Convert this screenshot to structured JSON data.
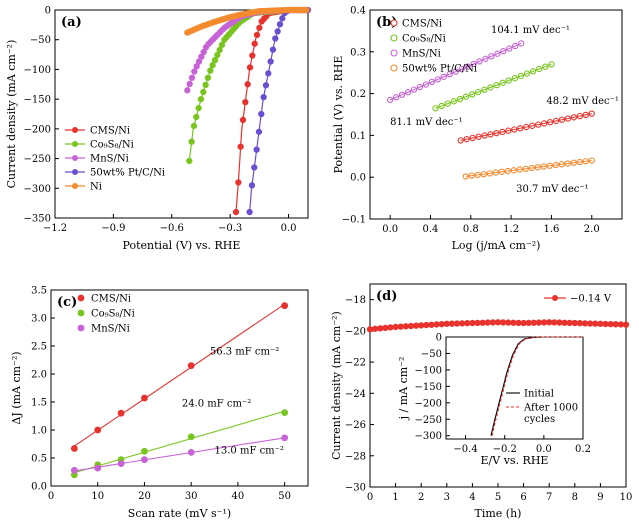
{
  "colors": {
    "red": "#e8322d",
    "green": "#79c51f",
    "purple": "#c763d6",
    "blue": "#6a4fd0",
    "orange": "#f48a2e",
    "black": "#000000",
    "dashred": "#e8322d"
  },
  "chart_data": [
    {
      "panel": "(a)",
      "type": "line",
      "xlabel": "Potential (V) vs. RHE",
      "ylabel": "Current density (mA cm⁻²)",
      "xlim": [
        -1.2,
        0.1
      ],
      "ylim": [
        -350,
        0
      ],
      "xticks": [
        -1.2,
        -0.9,
        -0.6,
        -0.3,
        0.0
      ],
      "xtick_labels": [
        "−1.2",
        "−0.9",
        "−0.6",
        "−0.3",
        "0.0"
      ],
      "yticks": [
        0,
        -50,
        -100,
        -150,
        -200,
        -250,
        -300,
        -350
      ],
      "ytick_labels": [
        "0",
        "−50",
        "−100",
        "−150",
        "−200",
        "−250",
        "−300",
        "−350"
      ],
      "legend": [
        "CMS/Ni",
        "Co₉S₈/Ni",
        "MnS/Ni",
        "50wt% Pt/C/Ni",
        "Ni"
      ],
      "series": [
        {
          "name": "CMS/Ni",
          "color": "red",
          "points": [
            [
              -0.27,
              -340
            ],
            [
              -0.26,
              -300
            ],
            [
              -0.25,
              -250
            ],
            [
              -0.24,
              -200
            ],
            [
              -0.22,
              -150
            ],
            [
              -0.2,
              -100
            ],
            [
              -0.17,
              -50
            ],
            [
              -0.14,
              -20
            ],
            [
              -0.1,
              -5
            ],
            [
              0.0,
              0
            ],
            [
              0.1,
              0
            ]
          ]
        },
        {
          "name": "Co₉S₈/Ni",
          "color": "green",
          "points": [
            [
              -0.51,
              -254
            ],
            [
              -0.49,
              -200
            ],
            [
              -0.45,
              -150
            ],
            [
              -0.4,
              -100
            ],
            [
              -0.33,
              -50
            ],
            [
              -0.25,
              -20
            ],
            [
              -0.18,
              -5
            ],
            [
              0.0,
              0
            ],
            [
              0.1,
              0
            ]
          ]
        },
        {
          "name": "MnS/Ni",
          "color": "purple",
          "points": [
            [
              -0.52,
              -135
            ],
            [
              -0.48,
              -100
            ],
            [
              -0.42,
              -60
            ],
            [
              -0.33,
              -30
            ],
            [
              -0.24,
              -10
            ],
            [
              -0.15,
              -3
            ],
            [
              0.0,
              0
            ],
            [
              0.1,
              0
            ]
          ]
        },
        {
          "name": "50wt% Pt/C/Ni",
          "color": "blue",
          "points": [
            [
              -0.2,
              -340
            ],
            [
              -0.19,
              -300
            ],
            [
              -0.17,
              -250
            ],
            [
              -0.15,
              -200
            ],
            [
              -0.13,
              -150
            ],
            [
              -0.1,
              -100
            ],
            [
              -0.07,
              -50
            ],
            [
              -0.04,
              -20
            ],
            [
              -0.02,
              -5
            ],
            [
              0.0,
              0
            ],
            [
              0.1,
              0
            ]
          ]
        },
        {
          "name": "Ni",
          "color": "orange",
          "points": [
            [
              -0.52,
              -38
            ],
            [
              -0.45,
              -28
            ],
            [
              -0.38,
              -20
            ],
            [
              -0.3,
              -12
            ],
            [
              -0.22,
              -6
            ],
            [
              -0.15,
              -2
            ],
            [
              0.0,
              0
            ],
            [
              0.1,
              0
            ]
          ]
        }
      ]
    },
    {
      "panel": "(b)",
      "type": "scatter",
      "xlabel": "Log (j/mA cm⁻²)",
      "ylabel": "Potential (V) vs. RHE",
      "xlim": [
        -0.2,
        2.3
      ],
      "ylim": [
        -0.1,
        0.4
      ],
      "xticks": [
        0.0,
        0.4,
        0.8,
        1.2,
        1.6,
        2.0
      ],
      "xtick_labels": [
        "0.0",
        "0.4",
        "0.8",
        "1.2",
        "1.6",
        "2.0"
      ],
      "yticks": [
        -0.1,
        0.0,
        0.1,
        0.2,
        0.3,
        0.4
      ],
      "ytick_labels": [
        "−0.1",
        "0.0",
        "0.1",
        "0.2",
        "0.3",
        "0.4"
      ],
      "legend": [
        "CMS/Ni",
        "Co₉S₈/Ni",
        "MnS/Ni",
        "50wt% Pt/C/Ni"
      ],
      "annotations": [
        "104.1 mV dec⁻¹",
        "48.2 mV dec⁻¹",
        "81.1 mV dec⁻¹",
        "30.7 mV dec⁻¹"
      ],
      "series": [
        {
          "name": "CMS/Ni",
          "color": "red",
          "x0": 0.7,
          "x1": 2.0,
          "y0": 0.088,
          "y1": 0.152
        },
        {
          "name": "Co₉S₈/Ni",
          "color": "green",
          "x0": 0.45,
          "x1": 1.6,
          "y0": 0.165,
          "y1": 0.27
        },
        {
          "name": "MnS/Ni",
          "color": "purple",
          "x0": 0.0,
          "x1": 1.3,
          "y0": 0.185,
          "y1": 0.32
        },
        {
          "name": "50wt% Pt/C/Ni",
          "color": "orange",
          "x0": 0.75,
          "x1": 2.0,
          "y0": 0.002,
          "y1": 0.04
        }
      ]
    },
    {
      "panel": "(c)",
      "type": "scatter",
      "xlabel": "Scan rate (mV s⁻¹)",
      "ylabel": "ΔJ (mA cm⁻²)",
      "xlim": [
        0,
        55
      ],
      "ylim": [
        0.0,
        3.5
      ],
      "xticks": [
        0,
        10,
        20,
        30,
        40,
        50
      ],
      "xtick_labels": [
        "0",
        "10",
        "20",
        "30",
        "40",
        "50"
      ],
      "yticks": [
        0.0,
        0.5,
        1.0,
        1.5,
        2.0,
        2.5,
        3.0,
        3.5
      ],
      "ytick_labels": [
        "0.0",
        "0.5",
        "1.0",
        "1.5",
        "2.0",
        "2.5",
        "3.0",
        "3.5"
      ],
      "legend": [
        "CMS/Ni",
        "Co₉S₈/Ni",
        "MnS/Ni"
      ],
      "annotations": [
        "56.3 mF cm⁻²",
        "24.0 mF cm⁻²",
        "13.0 mF cm⁻²"
      ],
      "x": [
        5,
        10,
        15,
        20,
        30,
        50
      ],
      "series": [
        {
          "name": "CMS/Ni",
          "color": "red",
          "values": [
            0.67,
            1.0,
            1.3,
            1.57,
            2.15,
            3.22
          ]
        },
        {
          "name": "Co₉S₈/Ni",
          "color": "green",
          "values": [
            0.2,
            0.38,
            0.47,
            0.62,
            0.88,
            1.31
          ]
        },
        {
          "name": "MnS/Ni",
          "color": "purple",
          "values": [
            0.28,
            0.32,
            0.4,
            0.47,
            0.6,
            0.86
          ]
        }
      ]
    },
    {
      "panel": "(d)",
      "type": "line",
      "xlabel": "Time (h)",
      "ylabel": "Current density (mA cm⁻²)",
      "xlim": [
        0,
        10
      ],
      "ylim": [
        -30,
        -17
      ],
      "xticks": [
        0,
        1,
        2,
        3,
        4,
        5,
        6,
        7,
        8,
        9,
        10
      ],
      "xtick_labels": [
        "0",
        "1",
        "2",
        "3",
        "4",
        "5",
        "6",
        "7",
        "8",
        "9",
        "10"
      ],
      "yticks": [
        -18,
        -20,
        -22,
        -24,
        -26,
        -28,
        -30
      ],
      "ytick_labels": [
        "−18",
        "−20",
        "−22",
        "−24",
        "−26",
        "−28",
        "−30"
      ],
      "legend": [
        "−0.14 V"
      ],
      "series": [
        {
          "name": "−0.14 V",
          "color": "red",
          "x0": 0,
          "x1": 10,
          "values": [
            -19.9,
            -19.75,
            -19.65,
            -19.55,
            -19.5,
            -19.45,
            -19.5,
            -19.45,
            -19.5,
            -19.55,
            -19.6
          ]
        }
      ],
      "inset": {
        "xlabel": "E/V vs. RHE",
        "ylabel": "j / mA cm⁻²",
        "xlim": [
          -0.5,
          0.2
        ],
        "ylim": [
          -310,
          0
        ],
        "xticks": [
          -0.4,
          -0.2,
          0.0,
          0.2
        ],
        "xtick_labels": [
          "−0.4",
          "−0.2",
          "0.0",
          "0.2"
        ],
        "yticks": [
          0,
          -50,
          -100,
          -150,
          -200,
          -250,
          -300
        ],
        "ytick_labels": [
          "0",
          "−50",
          "−100",
          "−150",
          "−200",
          "−250",
          "−300"
        ],
        "legend": [
          "Initial",
          "After 1000",
          "cycles"
        ],
        "series": [
          {
            "name": "Initial",
            "color": "black",
            "points": [
              [
                -0.27,
                -310
              ],
              [
                -0.25,
                -250
              ],
              [
                -0.22,
                -180
              ],
              [
                -0.19,
                -110
              ],
              [
                -0.16,
                -55
              ],
              [
                -0.13,
                -20
              ],
              [
                -0.1,
                -6
              ],
              [
                -0.05,
                -1
              ],
              [
                0.0,
                0
              ],
              [
                0.2,
                0
              ]
            ]
          },
          {
            "name": "After 1000 cycles",
            "color": "dashred",
            "points": [
              [
                -0.265,
                -310
              ],
              [
                -0.245,
                -250
              ],
              [
                -0.215,
                -180
              ],
              [
                -0.185,
                -110
              ],
              [
                -0.155,
                -55
              ],
              [
                -0.125,
                -20
              ],
              [
                -0.095,
                -6
              ],
              [
                -0.05,
                -1
              ],
              [
                0.0,
                0
              ],
              [
                0.2,
                0
              ]
            ]
          }
        ]
      }
    }
  ]
}
